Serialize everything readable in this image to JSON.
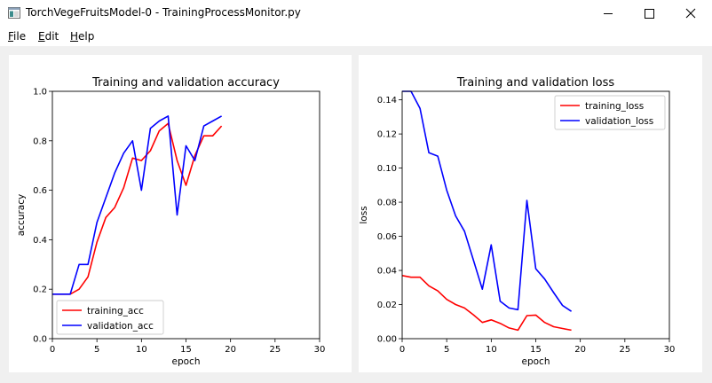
{
  "window": {
    "title": "TorchVegeFruitsModel-0 - TrainingProcessMonitor.py",
    "controls": [
      "minimize",
      "maximize",
      "close"
    ]
  },
  "menu": {
    "items": [
      {
        "label": "File"
      },
      {
        "label": "Edit"
      },
      {
        "label": "Help"
      }
    ]
  },
  "chart_data": [
    {
      "type": "line",
      "title": "Training and validation accuracy",
      "xlabel": "epoch",
      "ylabel": "accuracy",
      "xlim": [
        0,
        30
      ],
      "ylim": [
        0,
        1.0
      ],
      "xticks": [
        "0",
        "5",
        "10",
        "15",
        "20",
        "25",
        "30"
      ],
      "yticks": [
        "0.0",
        "0.2",
        "0.4",
        "0.6",
        "0.8",
        "1.0"
      ],
      "legend_position": "lower-left",
      "x": [
        0,
        1,
        2,
        3,
        4,
        5,
        6,
        7,
        8,
        9,
        10,
        11,
        12,
        13,
        14,
        15,
        16,
        17,
        18,
        19
      ],
      "series": [
        {
          "name": "training_acc",
          "color": "#ff0000",
          "values": [
            0.18,
            0.18,
            0.18,
            0.2,
            0.25,
            0.39,
            0.49,
            0.53,
            0.61,
            0.73,
            0.72,
            0.76,
            0.84,
            0.87,
            0.72,
            0.62,
            0.74,
            0.82,
            0.82,
            0.86
          ]
        },
        {
          "name": "validation_acc",
          "color": "#0000ff",
          "values": [
            0.18,
            0.18,
            0.18,
            0.3,
            0.3,
            0.47,
            0.57,
            0.67,
            0.75,
            0.8,
            0.6,
            0.85,
            0.88,
            0.9,
            0.5,
            0.78,
            0.72,
            0.86,
            0.88,
            0.9
          ]
        }
      ]
    },
    {
      "type": "line",
      "title": "Training and validation loss",
      "xlabel": "epoch",
      "ylabel": "loss",
      "xlim": [
        0,
        30
      ],
      "ylim": [
        0,
        0.145
      ],
      "xticks": [
        "0",
        "5",
        "10",
        "15",
        "20",
        "25",
        "30"
      ],
      "yticks": [
        "0.00",
        "0.02",
        "0.04",
        "0.06",
        "0.08",
        "0.10",
        "0.12",
        "0.14"
      ],
      "legend_position": "upper-right",
      "x": [
        0,
        1,
        2,
        3,
        4,
        5,
        6,
        7,
        8,
        9,
        10,
        11,
        12,
        13,
        14,
        15,
        16,
        17,
        18,
        19
      ],
      "series": [
        {
          "name": "training_loss",
          "color": "#ff0000",
          "values": [
            0.037,
            0.036,
            0.036,
            0.031,
            0.028,
            0.023,
            0.02,
            0.018,
            0.014,
            0.0095,
            0.011,
            0.009,
            0.0063,
            0.005,
            0.0135,
            0.0138,
            0.0095,
            0.007,
            0.006,
            0.005
          ]
        },
        {
          "name": "validation_loss",
          "color": "#0000ff",
          "values": [
            0.145,
            0.145,
            0.135,
            0.109,
            0.107,
            0.087,
            0.072,
            0.063,
            0.046,
            0.029,
            0.055,
            0.022,
            0.018,
            0.017,
            0.081,
            0.041,
            0.035,
            0.027,
            0.0195,
            0.016
          ]
        }
      ]
    }
  ]
}
